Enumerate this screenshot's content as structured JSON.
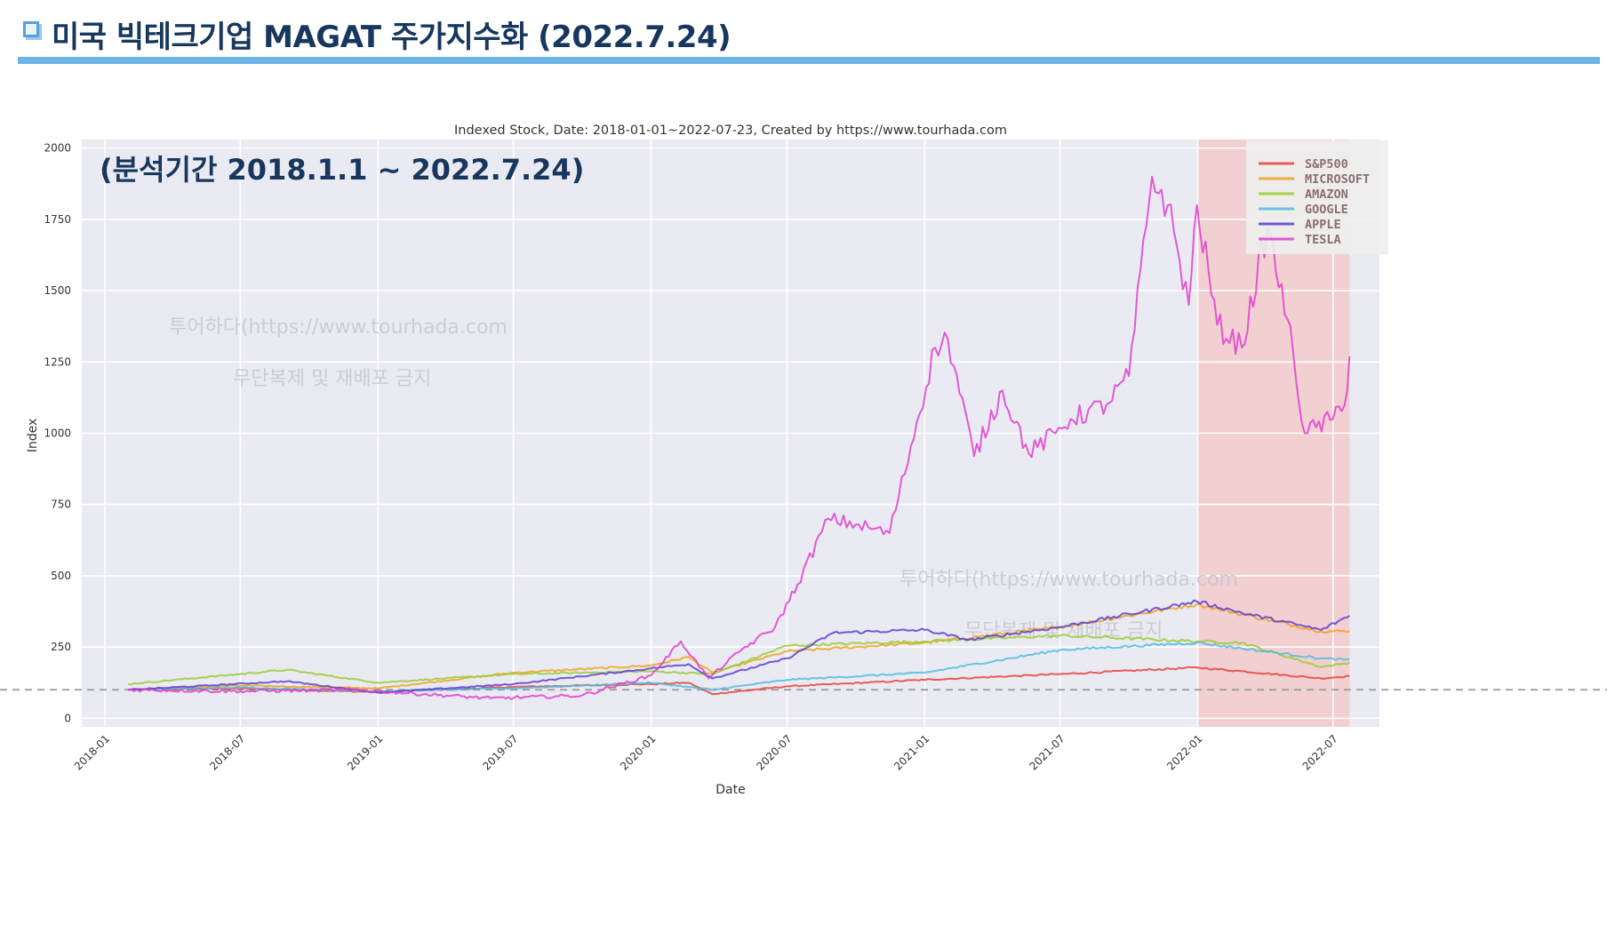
{
  "header": {
    "title": "미국 빅테크기업 MAGAT 주가지수화 (2022.7.24)"
  },
  "chart_data": {
    "type": "line",
    "title": "Indexed Stock,  Date: 2018-01-01~2022-07-23, Created by https://www.tourhada.com",
    "xlabel": "Date",
    "ylabel": "Index",
    "ylim": [
      -30,
      2030
    ],
    "yticks": [
      0,
      250,
      500,
      750,
      1000,
      1250,
      1500,
      1750,
      2000
    ],
    "xticks": [
      "2018-01",
      "2018-07",
      "2019-01",
      "2019-07",
      "2020-01",
      "2020-07",
      "2021-01",
      "2021-07",
      "2022-01",
      "2022-07"
    ],
    "xrange": [
      "2017-12-01",
      "2022-09-01"
    ],
    "baseline": 100,
    "grid": true,
    "legend_position": "top-right",
    "highlight_region": {
      "start": "2022-01-01",
      "end": "2022-07-23"
    },
    "overlay_text": "(분석기간 2018.1.1  ~ 2022.7.24)",
    "watermarks": [
      {
        "text": "투어하다(https://www.tourhada.com",
        "sub": "무단복제 및 재배포 금지"
      },
      {
        "text": "투어하다(https://www.tourhada.com",
        "sub": "무단복제 및 재배포 금지"
      }
    ],
    "series": [
      {
        "name": "S&P500",
        "color": "#e8433b",
        "points": [
          [
            "2018-02-01",
            100
          ],
          [
            "2018-07-01",
            105
          ],
          [
            "2019-01-01",
            92
          ],
          [
            "2019-07-01",
            110
          ],
          [
            "2020-01-01",
            120
          ],
          [
            "2020-02-20",
            125
          ],
          [
            "2020-03-23",
            85
          ],
          [
            "2020-07-01",
            112
          ],
          [
            "2021-01-01",
            135
          ],
          [
            "2021-07-01",
            155
          ],
          [
            "2021-12-31",
            178
          ],
          [
            "2022-03-01",
            165
          ],
          [
            "2022-06-15",
            140
          ],
          [
            "2022-07-23",
            148
          ]
        ]
      },
      {
        "name": "MICROSOFT",
        "color": "#f0a21e",
        "points": [
          [
            "2018-02-01",
            100
          ],
          [
            "2018-07-01",
            115
          ],
          [
            "2019-01-01",
            105
          ],
          [
            "2019-07-01",
            160
          ],
          [
            "2020-01-01",
            185
          ],
          [
            "2020-02-20",
            215
          ],
          [
            "2020-03-23",
            160
          ],
          [
            "2020-07-01",
            235
          ],
          [
            "2021-01-01",
            265
          ],
          [
            "2021-07-01",
            320
          ],
          [
            "2021-12-31",
            400
          ],
          [
            "2022-03-01",
            365
          ],
          [
            "2022-06-15",
            305
          ],
          [
            "2022-07-23",
            305
          ]
        ]
      },
      {
        "name": "AMAZON",
        "color": "#9acd32",
        "points": [
          [
            "2018-02-01",
            120
          ],
          [
            "2018-09-01",
            170
          ],
          [
            "2019-01-01",
            125
          ],
          [
            "2019-07-01",
            155
          ],
          [
            "2020-01-01",
            165
          ],
          [
            "2020-03-23",
            155
          ],
          [
            "2020-07-01",
            255
          ],
          [
            "2021-01-01",
            270
          ],
          [
            "2021-07-01",
            290
          ],
          [
            "2021-12-31",
            270
          ],
          [
            "2022-03-01",
            265
          ],
          [
            "2022-06-15",
            180
          ],
          [
            "2022-07-23",
            195
          ]
        ]
      },
      {
        "name": "GOOGLE",
        "color": "#4fbde0",
        "points": [
          [
            "2018-02-01",
            100
          ],
          [
            "2018-07-01",
            108
          ],
          [
            "2019-01-01",
            95
          ],
          [
            "2019-07-01",
            105
          ],
          [
            "2020-01-01",
            125
          ],
          [
            "2020-03-23",
            100
          ],
          [
            "2020-07-01",
            135
          ],
          [
            "2021-01-01",
            160
          ],
          [
            "2021-07-01",
            240
          ],
          [
            "2021-12-31",
            265
          ],
          [
            "2022-03-01",
            245
          ],
          [
            "2022-06-15",
            210
          ],
          [
            "2022-07-23",
            205
          ]
        ]
      },
      {
        "name": "APPLE",
        "color": "#5a3fd6",
        "points": [
          [
            "2018-02-01",
            100
          ],
          [
            "2018-09-01",
            130
          ],
          [
            "2019-01-01",
            90
          ],
          [
            "2019-07-01",
            120
          ],
          [
            "2020-01-01",
            175
          ],
          [
            "2020-02-20",
            190
          ],
          [
            "2020-03-23",
            140
          ],
          [
            "2020-07-01",
            210
          ],
          [
            "2020-09-01",
            300
          ],
          [
            "2021-01-01",
            310
          ],
          [
            "2021-03-01",
            275
          ],
          [
            "2021-07-01",
            320
          ],
          [
            "2021-12-31",
            410
          ],
          [
            "2022-03-01",
            370
          ],
          [
            "2022-06-15",
            310
          ],
          [
            "2022-07-23",
            360
          ]
        ]
      },
      {
        "name": "TESLA",
        "color": "#e040d0",
        "points": [
          [
            "2018-02-01",
            100
          ],
          [
            "2018-07-01",
            95
          ],
          [
            "2018-12-01",
            100
          ],
          [
            "2019-06-01",
            70
          ],
          [
            "2019-10-01",
            80
          ],
          [
            "2020-01-01",
            150
          ],
          [
            "2020-02-10",
            270
          ],
          [
            "2020-03-18",
            140
          ],
          [
            "2020-05-01",
            240
          ],
          [
            "2020-06-15",
            320
          ],
          [
            "2020-07-15",
            470
          ],
          [
            "2020-08-25",
            700
          ],
          [
            "2020-10-01",
            680
          ],
          [
            "2020-11-15",
            650
          ],
          [
            "2021-01-15",
            1300
          ],
          [
            "2021-02-01",
            1330
          ],
          [
            "2021-03-08",
            920
          ],
          [
            "2021-04-15",
            1150
          ],
          [
            "2021-05-20",
            930
          ],
          [
            "2021-06-25",
            1000
          ],
          [
            "2021-07-15",
            1050
          ],
          [
            "2021-09-01",
            1100
          ],
          [
            "2021-10-01",
            1200
          ],
          [
            "2021-11-01",
            1900
          ],
          [
            "2021-11-22",
            1800
          ],
          [
            "2021-12-20",
            1450
          ],
          [
            "2021-12-31",
            1800
          ],
          [
            "2022-01-27",
            1380
          ],
          [
            "2022-03-01",
            1300
          ],
          [
            "2022-04-04",
            1720
          ],
          [
            "2022-05-01",
            1400
          ],
          [
            "2022-05-24",
            1000
          ],
          [
            "2022-07-01",
            1050
          ],
          [
            "2022-07-20",
            1150
          ],
          [
            "2022-07-23",
            1270
          ]
        ]
      }
    ]
  }
}
